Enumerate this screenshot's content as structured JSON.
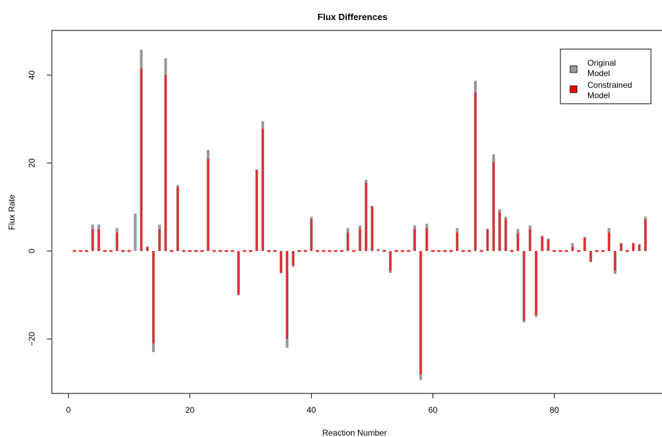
{
  "chart_data": {
    "type": "bar",
    "title": "Flux Differences",
    "xlabel": "Reaction Number",
    "ylabel": "Flux Rate",
    "xlim": [
      0,
      95
    ],
    "ylim": [
      -31,
      48
    ],
    "xticks": [
      0,
      20,
      40,
      60,
      80
    ],
    "yticks": [
      -20,
      0,
      20,
      40
    ],
    "xtick_labels": [
      "0",
      "20",
      "40",
      "60",
      "80"
    ],
    "ytick_labels": [
      "−20",
      "0",
      "20",
      "40"
    ],
    "legend": {
      "placement": "top-right",
      "entries": [
        {
          "label_line1": "Original",
          "label_line2": "Model",
          "color": "#999999"
        },
        {
          "label_line1": "Constrained",
          "label_line2": "Model",
          "color": "#ff0000"
        }
      ]
    },
    "colors": {
      "original": "#999999",
      "constrained": "#e32b2b"
    },
    "x": [
      1,
      2,
      3,
      4,
      5,
      6,
      7,
      8,
      9,
      10,
      11,
      12,
      13,
      14,
      15,
      16,
      17,
      18,
      19,
      20,
      21,
      22,
      23,
      24,
      25,
      26,
      27,
      28,
      29,
      30,
      31,
      32,
      33,
      34,
      35,
      36,
      37,
      38,
      39,
      40,
      41,
      42,
      43,
      44,
      45,
      46,
      47,
      48,
      49,
      50,
      51,
      52,
      53,
      54,
      55,
      56,
      57,
      58,
      59,
      60,
      61,
      62,
      63,
      64,
      65,
      66,
      67,
      68,
      69,
      70,
      71,
      72,
      73,
      74,
      75,
      76,
      77,
      78,
      79,
      80,
      81,
      82,
      83,
      84,
      85,
      86,
      87,
      88,
      89,
      90,
      91,
      92,
      93,
      94,
      95
    ],
    "series": [
      {
        "name": "Original Model",
        "values": [
          0,
          0,
          0,
          6,
          6,
          0,
          0,
          5.2,
          0,
          0,
          8.5,
          45.8,
          1,
          -23,
          6,
          43.8,
          0,
          15,
          0,
          0,
          0,
          0,
          23,
          0,
          0,
          0,
          0,
          -10,
          0,
          0,
          18.5,
          29.5,
          0,
          0,
          -5,
          -22,
          -3.5,
          0,
          0,
          7.8,
          0,
          0,
          0,
          0,
          0,
          5.2,
          0,
          5.8,
          16.2,
          10.2,
          0.4,
          0,
          -5,
          0,
          0,
          0,
          5.8,
          -29.3,
          6.2,
          0,
          0,
          0,
          0,
          5.2,
          0,
          0,
          38.7,
          0,
          5,
          22,
          9.5,
          7.8,
          0,
          5,
          -16.2,
          5.8,
          -15,
          3.5,
          2.8,
          0,
          0,
          0,
          1.8,
          0,
          3.2,
          -2.5,
          0,
          0,
          5.2,
          -5.2,
          1.8,
          0,
          1.8,
          1.5,
          7.8
        ]
      },
      {
        "name": "Constrained Model",
        "values": [
          0,
          0,
          0,
          5,
          5,
          0,
          0,
          4.2,
          0,
          0,
          0,
          41.5,
          1,
          -21,
          5,
          40,
          0,
          14.5,
          0,
          0,
          0,
          0,
          21,
          0,
          0,
          0,
          0,
          -10,
          0,
          0,
          18.5,
          27.8,
          0,
          0,
          -5,
          -20,
          -3.5,
          0,
          0,
          7.2,
          0,
          0,
          0,
          0,
          0,
          4.2,
          0,
          5,
          15.5,
          10.2,
          0.4,
          0,
          -4.5,
          0,
          0,
          0,
          5,
          -28,
          5.2,
          0,
          0,
          0,
          0,
          4.2,
          0,
          0,
          36,
          0,
          5,
          20.2,
          8.8,
          7.2,
          0,
          4,
          -15.8,
          5,
          -14.5,
          3.2,
          2.6,
          0,
          0,
          0,
          1,
          0,
          3,
          -2.5,
          0,
          0,
          4.2,
          -4.5,
          1.8,
          0,
          1.8,
          1.5,
          7.2
        ]
      }
    ]
  }
}
